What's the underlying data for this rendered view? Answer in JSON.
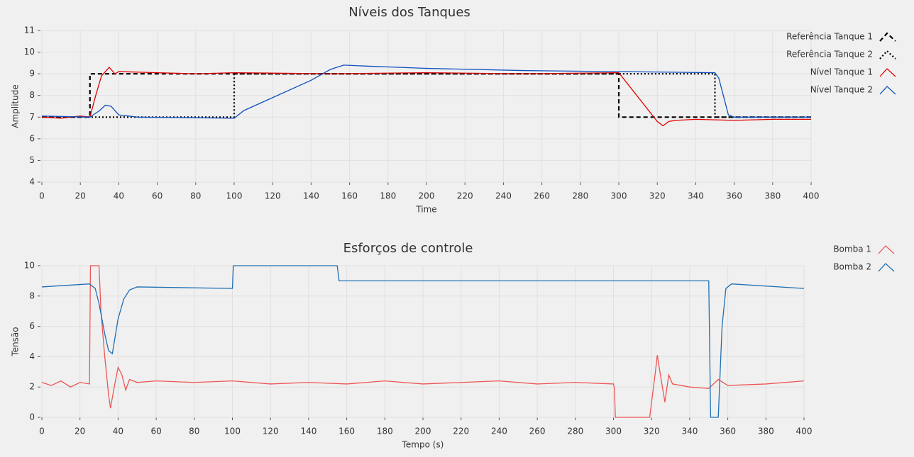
{
  "chart_data": [
    {
      "type": "line",
      "title": "Níveis dos Tanques",
      "xlabel": "Time",
      "ylabel": "Amplitude",
      "xlim": [
        0,
        400
      ],
      "xticks": [
        0,
        20,
        40,
        60,
        80,
        100,
        120,
        140,
        160,
        180,
        200,
        220,
        240,
        260,
        280,
        300,
        320,
        340,
        360,
        380,
        400
      ],
      "ylim": [
        4,
        11
      ],
      "yticks": [
        4,
        5,
        6,
        7,
        8,
        9,
        10,
        11
      ],
      "grid": true,
      "legend": "upper right",
      "series": [
        {
          "name": "Referência Tanque 1",
          "color": "#000000",
          "linestyle": "dashed",
          "x": [
            0,
            25,
            25,
            300,
            300,
            400
          ],
          "values": [
            7,
            7,
            9,
            9,
            7,
            7
          ]
        },
        {
          "name": "Referência Tanque 2",
          "color": "#000000",
          "linestyle": "dotted",
          "x": [
            0,
            100,
            100,
            350,
            350,
            400
          ],
          "values": [
            7,
            7,
            9,
            9,
            7,
            7
          ]
        },
        {
          "name": "Nível Tanque 1",
          "color": "#e00000",
          "linestyle": "solid",
          "x": [
            0,
            10,
            20,
            25,
            28,
            31,
            35,
            38,
            40,
            60,
            80,
            100,
            150,
            200,
            250,
            300,
            320,
            323,
            326,
            330,
            340,
            360,
            380,
            400
          ],
          "values": [
            7,
            6.95,
            7.05,
            7,
            8,
            8.9,
            9.3,
            9,
            9.1,
            9.05,
            9,
            9.05,
            9,
            9.05,
            9,
            9.05,
            6.8,
            6.6,
            6.8,
            6.85,
            6.9,
            6.85,
            6.9,
            6.9
          ]
        },
        {
          "name": "Nível Tanque 2",
          "color": "#1050c0",
          "linestyle": "solid",
          "x": [
            0,
            25,
            30,
            33,
            36,
            40,
            50,
            100,
            105,
            120,
            140,
            150,
            157,
            170,
            200,
            250,
            300,
            350,
            352,
            357,
            360,
            400
          ],
          "values": [
            7.05,
            7,
            7.3,
            7.55,
            7.5,
            7.1,
            7,
            6.95,
            7.3,
            7.9,
            8.7,
            9.2,
            9.4,
            9.35,
            9.25,
            9.15,
            9.1,
            9.05,
            8.8,
            7.1,
            7,
            7
          ]
        }
      ]
    },
    {
      "type": "line",
      "title": "Esforços de controle",
      "xlabel": "Tempo (s)",
      "ylabel": "Tensão",
      "xlim": [
        0,
        400
      ],
      "xticks": [
        0,
        20,
        40,
        60,
        80,
        100,
        120,
        140,
        160,
        180,
        200,
        220,
        240,
        260,
        280,
        300,
        320,
        340,
        360,
        380,
        400
      ],
      "ylim": [
        0,
        10
      ],
      "yticks": [
        0,
        2,
        4,
        6,
        8,
        10
      ],
      "grid": true,
      "legend": "upper right",
      "series": [
        {
          "name": "Bomba 1",
          "color": "#ee5555",
          "linestyle": "solid",
          "x": [
            0,
            5,
            10,
            15,
            20,
            25,
            25.5,
            30,
            31,
            33,
            35,
            36,
            38,
            40,
            42,
            44,
            46,
            50,
            60,
            80,
            100,
            120,
            140,
            160,
            180,
            200,
            220,
            240,
            260,
            280,
            300,
            300.5,
            301,
            319,
            322,
            323,
            325,
            327,
            329,
            331,
            340,
            350,
            355,
            360,
            380,
            400
          ],
          "values": [
            2.3,
            2.1,
            2.4,
            2,
            2.3,
            2.2,
            10,
            10,
            7,
            4,
            1.5,
            0.6,
            2,
            3.3,
            2.8,
            1.8,
            2.5,
            2.3,
            2.4,
            2.3,
            2.4,
            2.2,
            2.3,
            2.2,
            2.4,
            2.2,
            2.3,
            2.4,
            2.2,
            2.3,
            2.2,
            1.9,
            0,
            0,
            3,
            4.1,
            2.5,
            1,
            2.8,
            2.2,
            2,
            1.9,
            2.5,
            2.1,
            2.2,
            2.4
          ]
        },
        {
          "name": "Bomba 2",
          "color": "#1f6fb4",
          "linestyle": "solid",
          "x": [
            0,
            25,
            28,
            30,
            33,
            35,
            37,
            40,
            43,
            46,
            50,
            100,
            100.5,
            155,
            156,
            200,
            300,
            350,
            351,
            355,
            357,
            359,
            362,
            400
          ],
          "values": [
            8.6,
            8.8,
            8.5,
            7.5,
            5.5,
            4.4,
            4.2,
            6.5,
            7.8,
            8.4,
            8.6,
            8.5,
            10,
            10,
            9,
            9,
            9,
            9,
            0,
            0,
            6,
            8.5,
            8.8,
            8.5
          ]
        }
      ]
    }
  ]
}
